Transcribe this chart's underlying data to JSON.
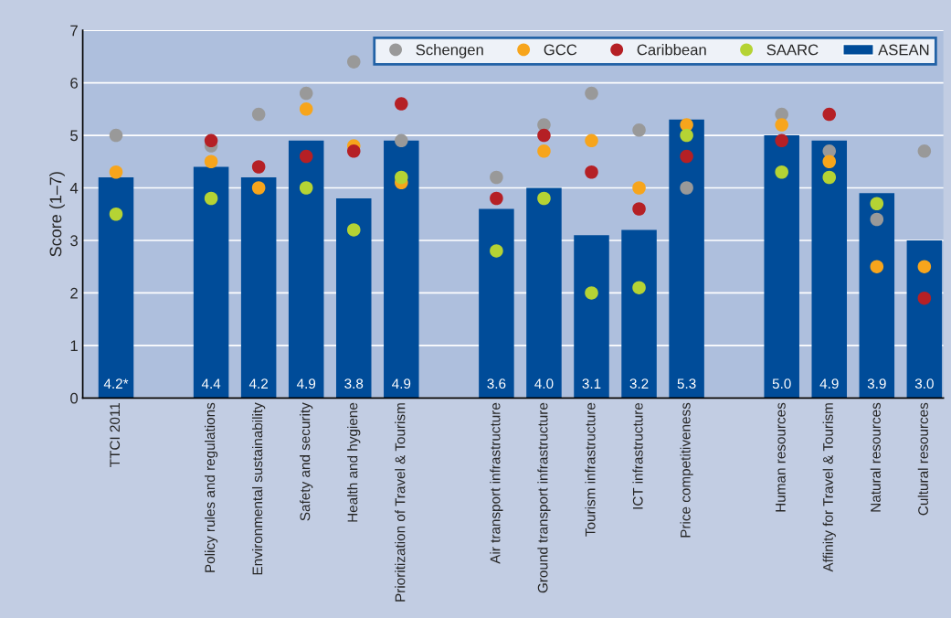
{
  "chart_data": {
    "type": "bar",
    "ylabel": "Score (1–7)",
    "categories": [
      "TTCI 2011",
      null,
      "Policy rules and regulations",
      "Environmental sustainability",
      "Safety and security",
      "Health and hygiene",
      "Prioritization of Travel & Tourism",
      null,
      "Air transport infrastructure",
      "Ground transport infrastructure",
      "Tourism infrastructure",
      "ICT infrastructure",
      "Price competitiveness",
      null,
      "Human resources",
      "Affinity for Travel & Tourism",
      "Natural resources",
      "Cultural resources"
    ],
    "series": [
      {
        "name": "Schengen",
        "type": "scatter",
        "color": "#999999",
        "values": [
          5.0,
          null,
          4.8,
          5.4,
          5.8,
          6.4,
          4.9,
          null,
          4.2,
          5.2,
          5.8,
          5.1,
          4.0,
          null,
          5.4,
          4.7,
          3.4,
          4.7
        ]
      },
      {
        "name": "GCC",
        "type": "scatter",
        "color": "#f7a51c",
        "values": [
          4.3,
          null,
          4.5,
          4.0,
          5.5,
          4.8,
          4.1,
          null,
          null,
          4.7,
          4.9,
          4.0,
          5.2,
          null,
          5.2,
          4.5,
          2.5,
          2.5
        ]
      },
      {
        "name": "Caribbean",
        "type": "scatter",
        "color": "#b52025",
        "values": [
          null,
          null,
          4.9,
          4.4,
          4.6,
          4.7,
          5.6,
          null,
          3.8,
          5.0,
          4.3,
          3.6,
          4.6,
          null,
          4.9,
          5.4,
          null,
          1.9
        ]
      },
      {
        "name": "SAARC",
        "type": "scatter",
        "color": "#b5d334",
        "values": [
          3.5,
          null,
          3.8,
          null,
          4.0,
          3.2,
          4.2,
          null,
          2.8,
          3.8,
          2.0,
          2.1,
          5.0,
          null,
          4.3,
          4.2,
          3.7,
          null
        ]
      },
      {
        "name": "ASEAN",
        "color": "#004c99",
        "values": [
          4.2,
          null,
          4.4,
          4.2,
          4.9,
          3.8,
          4.9,
          null,
          3.6,
          4.0,
          3.1,
          3.2,
          5.3,
          null,
          5.0,
          4.9,
          3.9,
          3.0
        ],
        "value_labels": [
          "4.2*",
          null,
          "4.4",
          "4.2",
          "4.9",
          "3.8",
          "4.9",
          null,
          "3.6",
          "4.0",
          "3.1",
          "3.2",
          "5.3",
          null,
          "5.0",
          "4.9",
          "3.9",
          "3.0"
        ]
      }
    ],
    "ylim": [
      0,
      7
    ],
    "yticks": [
      0,
      1,
      2,
      3,
      4,
      5,
      6,
      7
    ],
    "grid": "y",
    "legend": "top right",
    "marker": "circle"
  }
}
